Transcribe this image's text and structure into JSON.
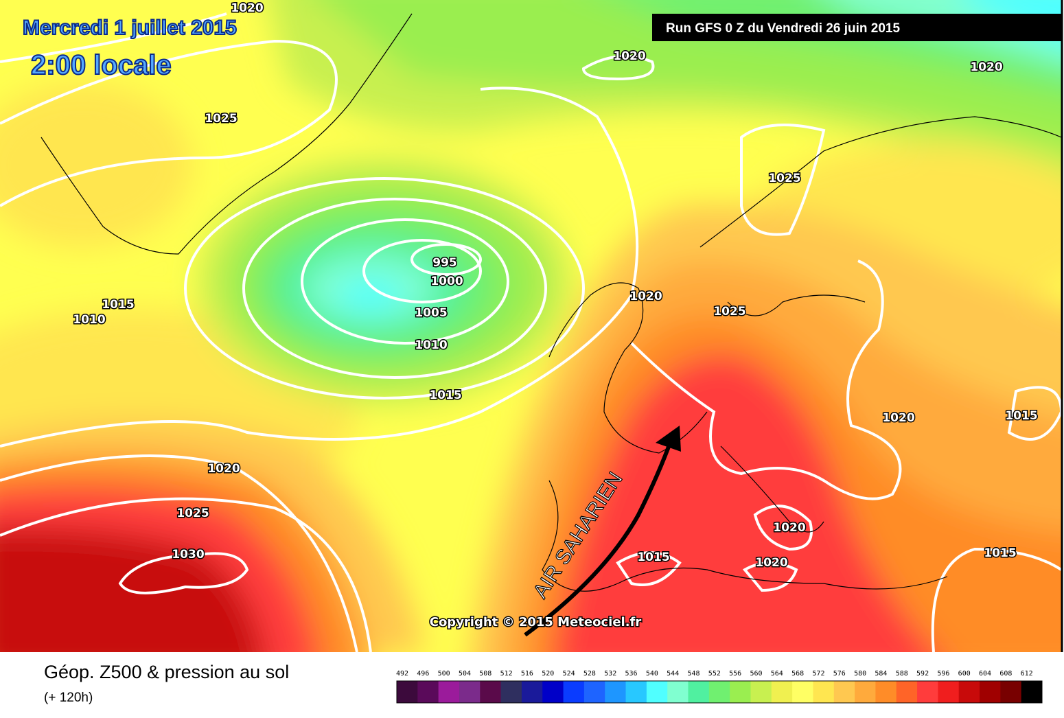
{
  "map": {
    "date": "Mercredi 1 juillet 2015",
    "time": "2:00 locale",
    "run": "Run GFS 0 Z du Vendredi 26 juin 2015",
    "copyright": "Copyright © 2015 Meteociel.fr",
    "annotation": "AIR SAHARIEN",
    "isobar_labels": [
      "1020",
      "1020",
      "1020",
      "1025",
      "1025",
      "995",
      "1000",
      "1005",
      "1010",
      "1015",
      "1015",
      "1010",
      "1020",
      "1025",
      "1020",
      "1015",
      "1020",
      "1025",
      "1030",
      "1020",
      "1015",
      "1020",
      "1015"
    ]
  },
  "legend": {
    "title": "Géop. Z500 & pression au sol",
    "subtitle": "(+ 120h)",
    "scale": [
      {
        "label": "492",
        "color": "#3c0a3c"
      },
      {
        "label": "496",
        "color": "#5a0a5a"
      },
      {
        "label": "500",
        "color": "#9b1b9b"
      },
      {
        "label": "504",
        "color": "#7b2b8b"
      },
      {
        "label": "508",
        "color": "#5a0a4a"
      },
      {
        "label": "512",
        "color": "#2f2f5f"
      },
      {
        "label": "516",
        "color": "#1a1a9a"
      },
      {
        "label": "520",
        "color": "#0000c8"
      },
      {
        "label": "524",
        "color": "#0a3cff"
      },
      {
        "label": "528",
        "color": "#1e64ff"
      },
      {
        "label": "532",
        "color": "#1e96ff"
      },
      {
        "label": "536",
        "color": "#28c8ff"
      },
      {
        "label": "540",
        "color": "#50ffff"
      },
      {
        "label": "544",
        "color": "#80ffd0"
      },
      {
        "label": "548",
        "color": "#50f0a0"
      },
      {
        "label": "552",
        "color": "#70f070"
      },
      {
        "label": "556",
        "color": "#9aee50"
      },
      {
        "label": "560",
        "color": "#c8f050"
      },
      {
        "label": "564",
        "color": "#f0f050"
      },
      {
        "label": "568",
        "color": "#ffff64"
      },
      {
        "label": "572",
        "color": "#ffe650"
      },
      {
        "label": "576",
        "color": "#ffc850"
      },
      {
        "label": "580",
        "color": "#ffaa3c"
      },
      {
        "label": "584",
        "color": "#ff8c28"
      },
      {
        "label": "588",
        "color": "#ff6428"
      },
      {
        "label": "592",
        "color": "#ff3c3c"
      },
      {
        "label": "596",
        "color": "#f01e1e"
      },
      {
        "label": "600",
        "color": "#c80a0a"
      },
      {
        "label": "604",
        "color": "#a00000"
      },
      {
        "label": "608",
        "color": "#780000"
      },
      {
        "label": "612",
        "color": "#000000"
      }
    ]
  }
}
